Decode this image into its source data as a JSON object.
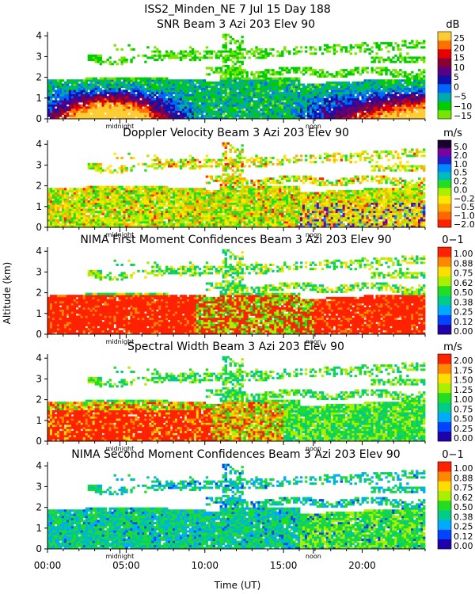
{
  "header": {
    "title": "ISS2_Minden_NE    7 Jul 15 Day 188"
  },
  "shared_axes": {
    "ylabel": "Altitude (km)",
    "xlabel": "Time (UT)",
    "x_ticks": [
      "00:00",
      "05:00",
      "10:00",
      "15:00",
      "20:00"
    ],
    "x_tick_hours": [
      0,
      5,
      10,
      15,
      20
    ],
    "xlim": [
      0,
      24
    ],
    "ylim": [
      0,
      4.2
    ],
    "y_ticks": [
      0,
      1,
      2,
      3,
      4
    ],
    "markers": {
      "midnight": {
        "label": "midnight",
        "hour": 4.6
      },
      "noon": {
        "label": "noon",
        "hour": 16.9
      }
    }
  },
  "chart_data": [
    {
      "type": "heatmap",
      "title": "SNR Beam 3 Azi 203 Elev 90",
      "unit": "dB",
      "colorbar_ticks": [
        "25",
        "20",
        "15",
        "10",
        "5",
        "0",
        "−5",
        "−10",
        "−15"
      ],
      "colorbar_range": [
        -15,
        25
      ],
      "colors": [
        "#76e600",
        "#00cc00",
        "#00aaaa",
        "#0066ff",
        "#1010aa",
        "#5a0080",
        "#8a0030",
        "#e60000",
        "#ff7000",
        "#ffcc33"
      ],
      "profile": "snr"
    },
    {
      "type": "heatmap",
      "title": "Doppler Velocity Beam 3 Azi 203 Elev 90",
      "unit": "m/s",
      "colorbar_ticks": [
        "5.0",
        "2.0",
        "1.0",
        "0.5",
        "0.2",
        "0.0",
        "−0.2",
        "−0.5",
        "−1.0",
        "−2.0"
      ],
      "colorbar_range": [
        -2.0,
        5.0
      ],
      "colors": [
        "#ff2200",
        "#ff6600",
        "#ffaa00",
        "#ffe600",
        "#aaee00",
        "#22dd22",
        "#00bbbb",
        "#0088ff",
        "#2020cc",
        "#7a00a0",
        "#1a0030"
      ],
      "profile": "doppler"
    },
    {
      "type": "heatmap",
      "title": "NIMA First Moment Confidences Beam 3 Azi 203 Elev 90",
      "unit": "0−1",
      "colorbar_ticks": [
        "1.00",
        "0.88",
        "0.75",
        "0.62",
        "0.50",
        "0.38",
        "0.25",
        "0.12",
        "0.00"
      ],
      "colorbar_range": [
        0,
        1
      ],
      "colors": [
        "#2000aa",
        "#0044ff",
        "#00aaff",
        "#00cc88",
        "#22dd22",
        "#aaee00",
        "#ffdd00",
        "#ff8800",
        "#ff2200"
      ],
      "profile": "conf1"
    },
    {
      "type": "heatmap",
      "title": "Spectral Width Beam 3 Azi 203 Elev 90",
      "unit": "m/s",
      "colorbar_ticks": [
        "2.00",
        "1.75",
        "1.50",
        "1.25",
        "1.00",
        "0.75",
        "0.50",
        "0.25",
        "0.00"
      ],
      "colorbar_range": [
        0,
        2
      ],
      "colors": [
        "#2000aa",
        "#0044ff",
        "#00aaff",
        "#00cc88",
        "#22dd22",
        "#aaee00",
        "#ffdd00",
        "#ff8800",
        "#ff2200"
      ],
      "profile": "width"
    },
    {
      "type": "heatmap",
      "title": "NIMA Second Moment Confidences Beam 3 Azi 203 Elev 90",
      "unit": "0−1",
      "colorbar_ticks": [
        "1.00",
        "0.88",
        "0.75",
        "0.62",
        "0.50",
        "0.38",
        "0.25",
        "0.12",
        "0.00"
      ],
      "colorbar_range": [
        0,
        1
      ],
      "colors": [
        "#2000aa",
        "#0044ff",
        "#00aaff",
        "#00cc88",
        "#22dd22",
        "#aaee00",
        "#ffdd00",
        "#ff8800",
        "#ff2200"
      ],
      "profile": "conf2"
    }
  ]
}
